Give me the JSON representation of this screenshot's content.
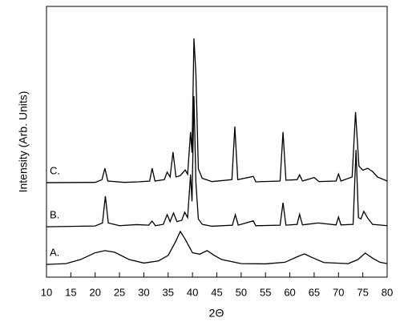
{
  "chart_data": {
    "type": "line",
    "x_label": "2Θ",
    "y_label": "Intensity (Arb. Units)",
    "xlim": [
      10,
      80
    ],
    "xticks": [
      10,
      15,
      20,
      25,
      30,
      35,
      40,
      45,
      50,
      55,
      60,
      65,
      70,
      75,
      80
    ],
    "ylim": [
      0,
      100
    ],
    "series": [
      {
        "name": "A.",
        "color": "#000000",
        "x": [
          10,
          14,
          17,
          20,
          22,
          24,
          27,
          30,
          33,
          35,
          36.5,
          37.5,
          38.5,
          40,
          41.5,
          43,
          44.5,
          46,
          50,
          55,
          59,
          61.5,
          63,
          64.5,
          67,
          72,
          74,
          75.5,
          77,
          78.5,
          80
        ],
        "values": [
          4.7,
          5.0,
          6.5,
          9.0,
          9.8,
          9.2,
          6.5,
          5.2,
          6.0,
          8.0,
          13.0,
          16.9,
          14.0,
          9.0,
          8.5,
          9.8,
          8.0,
          6.5,
          5.0,
          4.9,
          5.5,
          7.5,
          8.6,
          7.3,
          5.4,
          5.0,
          6.5,
          8.9,
          7.0,
          5.5,
          5.0
        ]
      },
      {
        "name": "B.",
        "color": "#000000",
        "x": [
          10,
          20,
          21.5,
          22.1,
          22.7,
          25,
          28.5,
          31,
          31.7,
          32.4,
          34,
          34.8,
          35.4,
          36.1,
          36.8,
          37.8,
          38.4,
          39.0,
          39.6,
          39.9,
          40.3,
          40.7,
          41.2,
          42,
          44,
          48.2,
          48.8,
          49.4,
          52.5,
          53.0,
          58,
          58.6,
          59.2,
          61.5,
          62.0,
          62.6,
          65.8,
          69.5,
          70.0,
          70.5,
          73,
          73.6,
          74.1,
          74.6,
          75.2,
          76,
          77,
          80
        ],
        "values": [
          18.6,
          18.9,
          20,
          29.9,
          20,
          19.0,
          19.4,
          19.2,
          20.7,
          19.0,
          19.5,
          23.1,
          20.5,
          23.7,
          20.5,
          21.0,
          24.0,
          22.0,
          37.9,
          28.0,
          66.9,
          35.0,
          21.5,
          19.5,
          18.8,
          19.2,
          23.1,
          19.2,
          20.8,
          19.0,
          19.2,
          27.5,
          19.2,
          19.5,
          23.2,
          19.3,
          20.0,
          19.3,
          22.2,
          19.3,
          19.5,
          47.0,
          22.0,
          21.5,
          24.3,
          21.8,
          19.5,
          19.0
        ]
      },
      {
        "name": "C.",
        "color": "#000000",
        "x": [
          10,
          20,
          21.4,
          22.0,
          22.6,
          26,
          29,
          31.2,
          31.7,
          32.3,
          34.2,
          34.8,
          35.4,
          36.0,
          36.6,
          37.5,
          38.5,
          39.0,
          39.6,
          39.9,
          40.3,
          40.7,
          41.2,
          42,
          44,
          48.1,
          48.7,
          49.3,
          52.5,
          53,
          58,
          58.6,
          59.2,
          61.5,
          62,
          62.6,
          65,
          66,
          69.5,
          70,
          70.5,
          72.8,
          73.5,
          74.2,
          75,
          76,
          77,
          78,
          80
        ],
        "values": [
          34.9,
          35.0,
          36,
          40.2,
          35.5,
          35.0,
          35.2,
          35.5,
          40.2,
          35.5,
          36.0,
          38.8,
          37.0,
          46.2,
          37.0,
          37.5,
          39.6,
          38.0,
          53.6,
          46.0,
          88.2,
          75.0,
          40.0,
          36.5,
          35.3,
          36.0,
          55.6,
          36.0,
          37.2,
          35.2,
          35.5,
          53.6,
          35.8,
          36.0,
          37.8,
          35.5,
          36.8,
          35.3,
          35.5,
          38.1,
          35.5,
          37.0,
          61.0,
          41.0,
          39.5,
          40.2,
          39.0,
          37.0,
          35.5
        ]
      }
    ]
  }
}
